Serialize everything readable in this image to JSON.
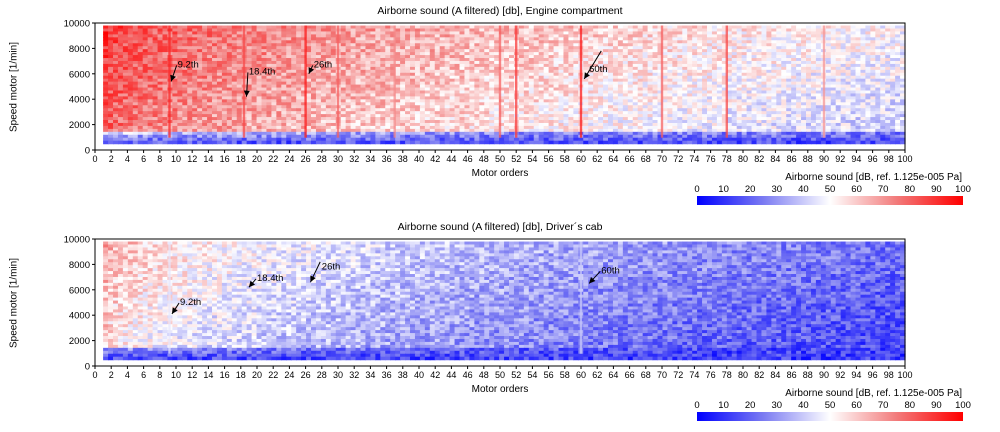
{
  "chart_data": [
    {
      "type": "heatmap",
      "title": "Airborne sound (A filtered) [db], Engine compartment",
      "xlabel": "Motor orders",
      "ylabel": "Speed motor [1/min]",
      "xlim": [
        0,
        100
      ],
      "ylim": [
        0,
        10000
      ],
      "x_ticks": [
        0,
        2,
        4,
        6,
        8,
        10,
        12,
        14,
        16,
        18,
        20,
        22,
        24,
        26,
        28,
        30,
        32,
        34,
        36,
        38,
        40,
        42,
        44,
        46,
        48,
        50,
        52,
        54,
        56,
        58,
        60,
        62,
        64,
        66,
        68,
        70,
        72,
        74,
        76,
        78,
        80,
        82,
        84,
        86,
        88,
        90,
        92,
        94,
        96,
        98,
        100
      ],
      "y_ticks": [
        0,
        2000,
        4000,
        6000,
        8000,
        10000
      ],
      "data_range": {
        "x": [
          1,
          100
        ],
        "y": [
          500,
          9800
        ]
      },
      "colorbar": {
        "label": "Airborne sound [dB, ref. 1.125e-005 Pa]",
        "ticks": [
          0,
          10,
          20,
          30,
          40,
          50,
          60,
          70,
          80,
          90,
          100
        ],
        "range": [
          0,
          100
        ]
      },
      "intensity_profile": {
        "low_order_level": 85,
        "high_order_level": 45,
        "low_speed_band_level": 12
      },
      "order_lines": [
        {
          "order": 9.2,
          "level": 92
        },
        {
          "order": 18.4,
          "level": 85
        },
        {
          "order": 26,
          "level": 95
        },
        {
          "order": 30,
          "level": 80
        },
        {
          "order": 37,
          "level": 72
        },
        {
          "order": 50,
          "level": 80
        },
        {
          "order": 52,
          "level": 88
        },
        {
          "order": 60,
          "level": 95
        },
        {
          "order": 70,
          "level": 80
        },
        {
          "order": 78,
          "level": 85
        },
        {
          "order": 90,
          "level": 70
        }
      ],
      "annotations": [
        {
          "text": "9.2th",
          "order": 10.2,
          "speed": 6500,
          "arrow_to": [
            9.4,
            5400
          ]
        },
        {
          "text": "18.4th",
          "order": 19,
          "speed": 5950,
          "arrow_to": [
            18.7,
            4200
          ]
        },
        {
          "text": "26th",
          "order": 27,
          "speed": 6500,
          "arrow_to": [
            26.4,
            6000
          ]
        },
        {
          "text": "60th",
          "order": 61,
          "speed": 6150,
          "arrow_to": [
            60.4,
            5600
          ],
          "arrow_from": [
            62.5,
            7800
          ]
        }
      ]
    },
    {
      "type": "heatmap",
      "title": "Airborne sound (A filtered) [db], Driver´s cab",
      "xlabel": "Motor orders",
      "ylabel": "Speed motor [1/min]",
      "xlim": [
        0,
        100
      ],
      "ylim": [
        0,
        10000
      ],
      "x_ticks": [
        0,
        2,
        4,
        6,
        8,
        10,
        12,
        14,
        16,
        18,
        20,
        22,
        24,
        26,
        28,
        30,
        32,
        34,
        36,
        38,
        40,
        42,
        44,
        46,
        48,
        50,
        52,
        54,
        56,
        58,
        60,
        62,
        64,
        66,
        68,
        70,
        72,
        74,
        76,
        78,
        80,
        82,
        84,
        86,
        88,
        90,
        92,
        94,
        96,
        98,
        100
      ],
      "y_ticks": [
        0,
        2000,
        4000,
        6000,
        8000,
        10000
      ],
      "data_range": {
        "x": [
          1,
          100
        ],
        "y": [
          500,
          9800
        ]
      },
      "colorbar": {
        "label": "Airborne sound [dB, ref. 1.125e-005 Pa]",
        "ticks": [
          0,
          10,
          20,
          30,
          40,
          50,
          60,
          70,
          80,
          90,
          100
        ],
        "range": [
          0,
          100
        ]
      },
      "intensity_profile": {
        "low_order_level": 62,
        "high_order_level": 18,
        "low_speed_band_level": 12
      },
      "order_lines": [
        {
          "order": 9.2,
          "level": 45
        },
        {
          "order": 60,
          "level": 40
        }
      ],
      "annotations": [
        {
          "text": "9.2th",
          "order": 10.5,
          "speed": 4800,
          "arrow_to": [
            9.5,
            4100
          ]
        },
        {
          "text": "18.4th",
          "order": 20,
          "speed": 6700,
          "arrow_to": [
            19,
            6200
          ]
        },
        {
          "text": "26th",
          "order": 28,
          "speed": 7600,
          "arrow_to": [
            26.6,
            6600
          ],
          "arrow_from": [
            27.8,
            8200
          ]
        },
        {
          "text": "60th",
          "order": 62.5,
          "speed": 7300,
          "arrow_to": [
            61,
            6500
          ]
        }
      ]
    }
  ]
}
